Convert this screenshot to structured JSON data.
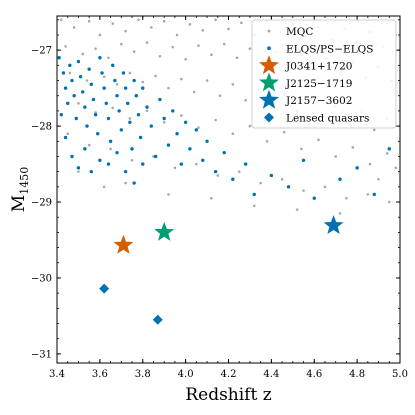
{
  "chart_data": {
    "type": "scatter",
    "title": "",
    "xlabel": "Redshift z",
    "ylabel_main": "M",
    "ylabel_sub": "1450",
    "xlim": [
      3.4,
      5.0
    ],
    "ylim": [
      -26.55,
      -31.12
    ],
    "y_inverted": true,
    "xticks": [
      {
        "v": 3.4,
        "label": "3.4"
      },
      {
        "v": 3.6,
        "label": "3.6"
      },
      {
        "v": 3.8,
        "label": "3.8"
      },
      {
        "v": 4.0,
        "label": "4.0"
      },
      {
        "v": 4.2,
        "label": "4.2"
      },
      {
        "v": 4.4,
        "label": "4.4"
      },
      {
        "v": 4.6,
        "label": "4.6"
      },
      {
        "v": 4.8,
        "label": "4.8"
      },
      {
        "v": 5.0,
        "label": "5.0"
      }
    ],
    "yticks": [
      {
        "v": -27,
        "label": "−27"
      },
      {
        "v": -28,
        "label": "−28"
      },
      {
        "v": -29,
        "label": "−29"
      },
      {
        "v": -30,
        "label": "−30"
      },
      {
        "v": -31,
        "label": "−31"
      }
    ],
    "grid": false,
    "legend_position": "top-right",
    "series": [
      {
        "name": "MQC",
        "marker": "dot",
        "color": "#a8a8a8",
        "note_density": "dense grey background sample, concentrated near the top (bright end) and thinning toward fainter... brighter magnitudes",
        "points": [
          [
            3.42,
            -26.6
          ],
          [
            3.48,
            -26.7
          ],
          [
            3.55,
            -26.62
          ],
          [
            3.6,
            -26.8
          ],
          [
            3.66,
            -26.65
          ],
          [
            3.72,
            -26.75
          ],
          [
            3.78,
            -26.6
          ],
          [
            3.84,
            -26.7
          ],
          [
            3.9,
            -26.62
          ],
          [
            3.96,
            -26.8
          ],
          [
            4.02,
            -26.66
          ],
          [
            4.08,
            -26.74
          ],
          [
            4.14,
            -26.6
          ],
          [
            4.2,
            -26.72
          ],
          [
            4.26,
            -26.64
          ],
          [
            4.32,
            -26.8
          ],
          [
            4.38,
            -26.62
          ],
          [
            4.44,
            -26.76
          ],
          [
            4.5,
            -26.66
          ],
          [
            4.56,
            -26.82
          ],
          [
            4.62,
            -26.7
          ],
          [
            4.68,
            -26.86
          ],
          [
            4.74,
            -26.72
          ],
          [
            4.8,
            -26.9
          ],
          [
            4.86,
            -26.76
          ],
          [
            4.92,
            -26.95
          ],
          [
            4.98,
            -26.8
          ],
          [
            3.44,
            -26.95
          ],
          [
            3.52,
            -27.05
          ],
          [
            3.58,
            -26.98
          ],
          [
            3.64,
            -27.1
          ],
          [
            3.7,
            -26.92
          ],
          [
            3.76,
            -27.02
          ],
          [
            3.82,
            -26.9
          ],
          [
            3.88,
            -27.08
          ],
          [
            3.94,
            -26.96
          ],
          [
            4.0,
            -27.12
          ],
          [
            4.06,
            -26.94
          ],
          [
            4.12,
            -27.06
          ],
          [
            4.18,
            -26.92
          ],
          [
            4.24,
            -27.1
          ],
          [
            4.3,
            -26.98
          ],
          [
            4.36,
            -27.14
          ],
          [
            4.42,
            -27.02
          ],
          [
            4.48,
            -27.2
          ],
          [
            4.54,
            -27.06
          ],
          [
            4.6,
            -27.24
          ],
          [
            4.66,
            -27.1
          ],
          [
            4.72,
            -27.3
          ],
          [
            4.78,
            -27.16
          ],
          [
            4.84,
            -27.36
          ],
          [
            4.9,
            -27.22
          ],
          [
            4.96,
            -27.4
          ],
          [
            3.46,
            -27.3
          ],
          [
            3.54,
            -27.4
          ],
          [
            3.62,
            -27.35
          ],
          [
            3.68,
            -27.45
          ],
          [
            3.74,
            -27.3
          ],
          [
            3.8,
            -27.42
          ],
          [
            3.86,
            -27.34
          ],
          [
            3.92,
            -27.5
          ],
          [
            3.98,
            -27.38
          ],
          [
            4.04,
            -27.55
          ],
          [
            4.1,
            -27.4
          ],
          [
            4.16,
            -27.6
          ],
          [
            4.22,
            -27.45
          ],
          [
            4.28,
            -27.66
          ],
          [
            4.34,
            -27.52
          ],
          [
            4.4,
            -27.72
          ],
          [
            4.46,
            -27.58
          ],
          [
            4.52,
            -27.8
          ],
          [
            4.58,
            -27.66
          ],
          [
            4.64,
            -27.88
          ],
          [
            4.7,
            -27.74
          ],
          [
            4.76,
            -27.96
          ],
          [
            4.82,
            -27.82
          ],
          [
            4.88,
            -28.05
          ],
          [
            4.94,
            -27.9
          ],
          [
            3.5,
            -27.7
          ],
          [
            3.58,
            -27.82
          ],
          [
            3.66,
            -27.76
          ],
          [
            3.74,
            -27.9
          ],
          [
            3.82,
            -27.8
          ],
          [
            3.9,
            -27.95
          ],
          [
            3.98,
            -27.86
          ],
          [
            4.06,
            -28.02
          ],
          [
            4.14,
            -27.92
          ],
          [
            4.22,
            -28.1
          ],
          [
            4.3,
            -28.0
          ],
          [
            4.38,
            -28.2
          ],
          [
            4.46,
            -28.08
          ],
          [
            4.54,
            -28.3
          ],
          [
            4.62,
            -28.18
          ],
          [
            4.7,
            -28.4
          ],
          [
            4.78,
            -28.28
          ],
          [
            4.86,
            -28.5
          ],
          [
            4.94,
            -28.36
          ],
          [
            3.45,
            -28.1
          ],
          [
            3.55,
            -28.25
          ],
          [
            3.65,
            -28.3
          ],
          [
            3.75,
            -28.45
          ],
          [
            3.85,
            -28.4
          ],
          [
            3.95,
            -28.55
          ],
          [
            4.05,
            -28.5
          ],
          [
            4.15,
            -28.65
          ],
          [
            4.25,
            -28.6
          ],
          [
            4.35,
            -28.75
          ],
          [
            4.45,
            -28.7
          ],
          [
            4.55,
            -28.85
          ],
          [
            4.65,
            -28.8
          ],
          [
            4.75,
            -28.95
          ],
          [
            4.85,
            -28.9
          ],
          [
            4.95,
            -29.0
          ],
          [
            3.5,
            -28.6
          ],
          [
            3.62,
            -28.8
          ],
          [
            3.72,
            -28.75
          ],
          [
            3.92,
            -28.9
          ],
          [
            4.12,
            -28.95
          ],
          [
            4.32,
            -29.05
          ],
          [
            4.52,
            -29.1
          ],
          [
            4.72,
            -29.15
          ],
          [
            4.9,
            -28.7
          ],
          [
            4.98,
            -28.55
          ]
        ]
      },
      {
        "name": "ELQS/PS−ELQS",
        "marker": "dot",
        "color": "#0072b2",
        "points": [
          [
            3.41,
            -27.1
          ],
          [
            3.43,
            -27.3
          ],
          [
            3.44,
            -27.5
          ],
          [
            3.45,
            -27.7
          ],
          [
            3.46,
            -27.2
          ],
          [
            3.47,
            -27.4
          ],
          [
            3.48,
            -27.6
          ],
          [
            3.49,
            -27.9
          ],
          [
            3.5,
            -27.15
          ],
          [
            3.51,
            -27.35
          ],
          [
            3.52,
            -27.55
          ],
          [
            3.53,
            -27.75
          ],
          [
            3.54,
            -28.0
          ],
          [
            3.55,
            -27.25
          ],
          [
            3.56,
            -27.45
          ],
          [
            3.57,
            -27.65
          ],
          [
            3.58,
            -27.85
          ],
          [
            3.59,
            -28.1
          ],
          [
            3.6,
            -27.1
          ],
          [
            3.61,
            -27.3
          ],
          [
            3.62,
            -27.5
          ],
          [
            3.63,
            -27.7
          ],
          [
            3.64,
            -27.9
          ],
          [
            3.65,
            -28.2
          ],
          [
            3.66,
            -27.2
          ],
          [
            3.67,
            -27.4
          ],
          [
            3.68,
            -27.6
          ],
          [
            3.69,
            -27.8
          ],
          [
            3.7,
            -28.05
          ],
          [
            3.71,
            -27.3
          ],
          [
            3.72,
            -27.5
          ],
          [
            3.73,
            -27.7
          ],
          [
            3.74,
            -27.95
          ],
          [
            3.75,
            -28.3
          ],
          [
            3.76,
            -27.4
          ],
          [
            3.77,
            -27.6
          ],
          [
            3.78,
            -27.85
          ],
          [
            3.79,
            -28.15
          ],
          [
            3.8,
            -27.5
          ],
          [
            3.82,
            -27.75
          ],
          [
            3.84,
            -28.0
          ],
          [
            3.86,
            -28.4
          ],
          [
            3.88,
            -27.65
          ],
          [
            3.9,
            -27.9
          ],
          [
            3.92,
            -28.25
          ],
          [
            3.94,
            -27.8
          ],
          [
            3.96,
            -28.1
          ],
          [
            3.98,
            -28.5
          ],
          [
            4.0,
            -27.95
          ],
          [
            4.02,
            -28.3
          ],
          [
            4.05,
            -28.05
          ],
          [
            4.08,
            -28.45
          ],
          [
            4.1,
            -28.2
          ],
          [
            4.14,
            -28.6
          ],
          [
            4.18,
            -28.35
          ],
          [
            4.22,
            -28.7
          ],
          [
            4.28,
            -28.5
          ],
          [
            4.32,
            -28.9
          ],
          [
            4.4,
            -28.65
          ],
          [
            4.48,
            -28.8
          ],
          [
            4.55,
            -28.45
          ],
          [
            4.6,
            -28.95
          ],
          [
            4.72,
            -28.7
          ],
          [
            4.8,
            -28.55
          ],
          [
            4.88,
            -28.9
          ],
          [
            4.95,
            -28.3
          ],
          [
            3.42,
            -27.85
          ],
          [
            3.44,
            -28.15
          ],
          [
            3.47,
            -28.4
          ],
          [
            3.5,
            -28.55
          ],
          [
            3.53,
            -28.3
          ],
          [
            3.56,
            -28.6
          ],
          [
            3.6,
            -28.45
          ],
          [
            3.64,
            -28.5
          ],
          [
            3.68,
            -28.35
          ],
          [
            3.72,
            -28.6
          ],
          [
            3.76,
            -28.75
          ],
          [
            3.8,
            -28.5
          ]
        ]
      },
      {
        "name": "J0341+1720",
        "marker": "star",
        "color": "#d55e00",
        "points": [
          [
            3.71,
            -29.57
          ]
        ]
      },
      {
        "name": "J2125−1719",
        "marker": "star",
        "color": "#009e73",
        "points": [
          [
            3.9,
            -29.4
          ]
        ]
      },
      {
        "name": "J2157−3602",
        "marker": "star",
        "color": "#0072b2",
        "points": [
          [
            4.69,
            -29.31
          ]
        ]
      },
      {
        "name": "Lensed quasars",
        "marker": "diamond",
        "color": "#0072b2",
        "points": [
          [
            3.62,
            -30.14
          ],
          [
            3.87,
            -30.55
          ]
        ]
      }
    ]
  }
}
